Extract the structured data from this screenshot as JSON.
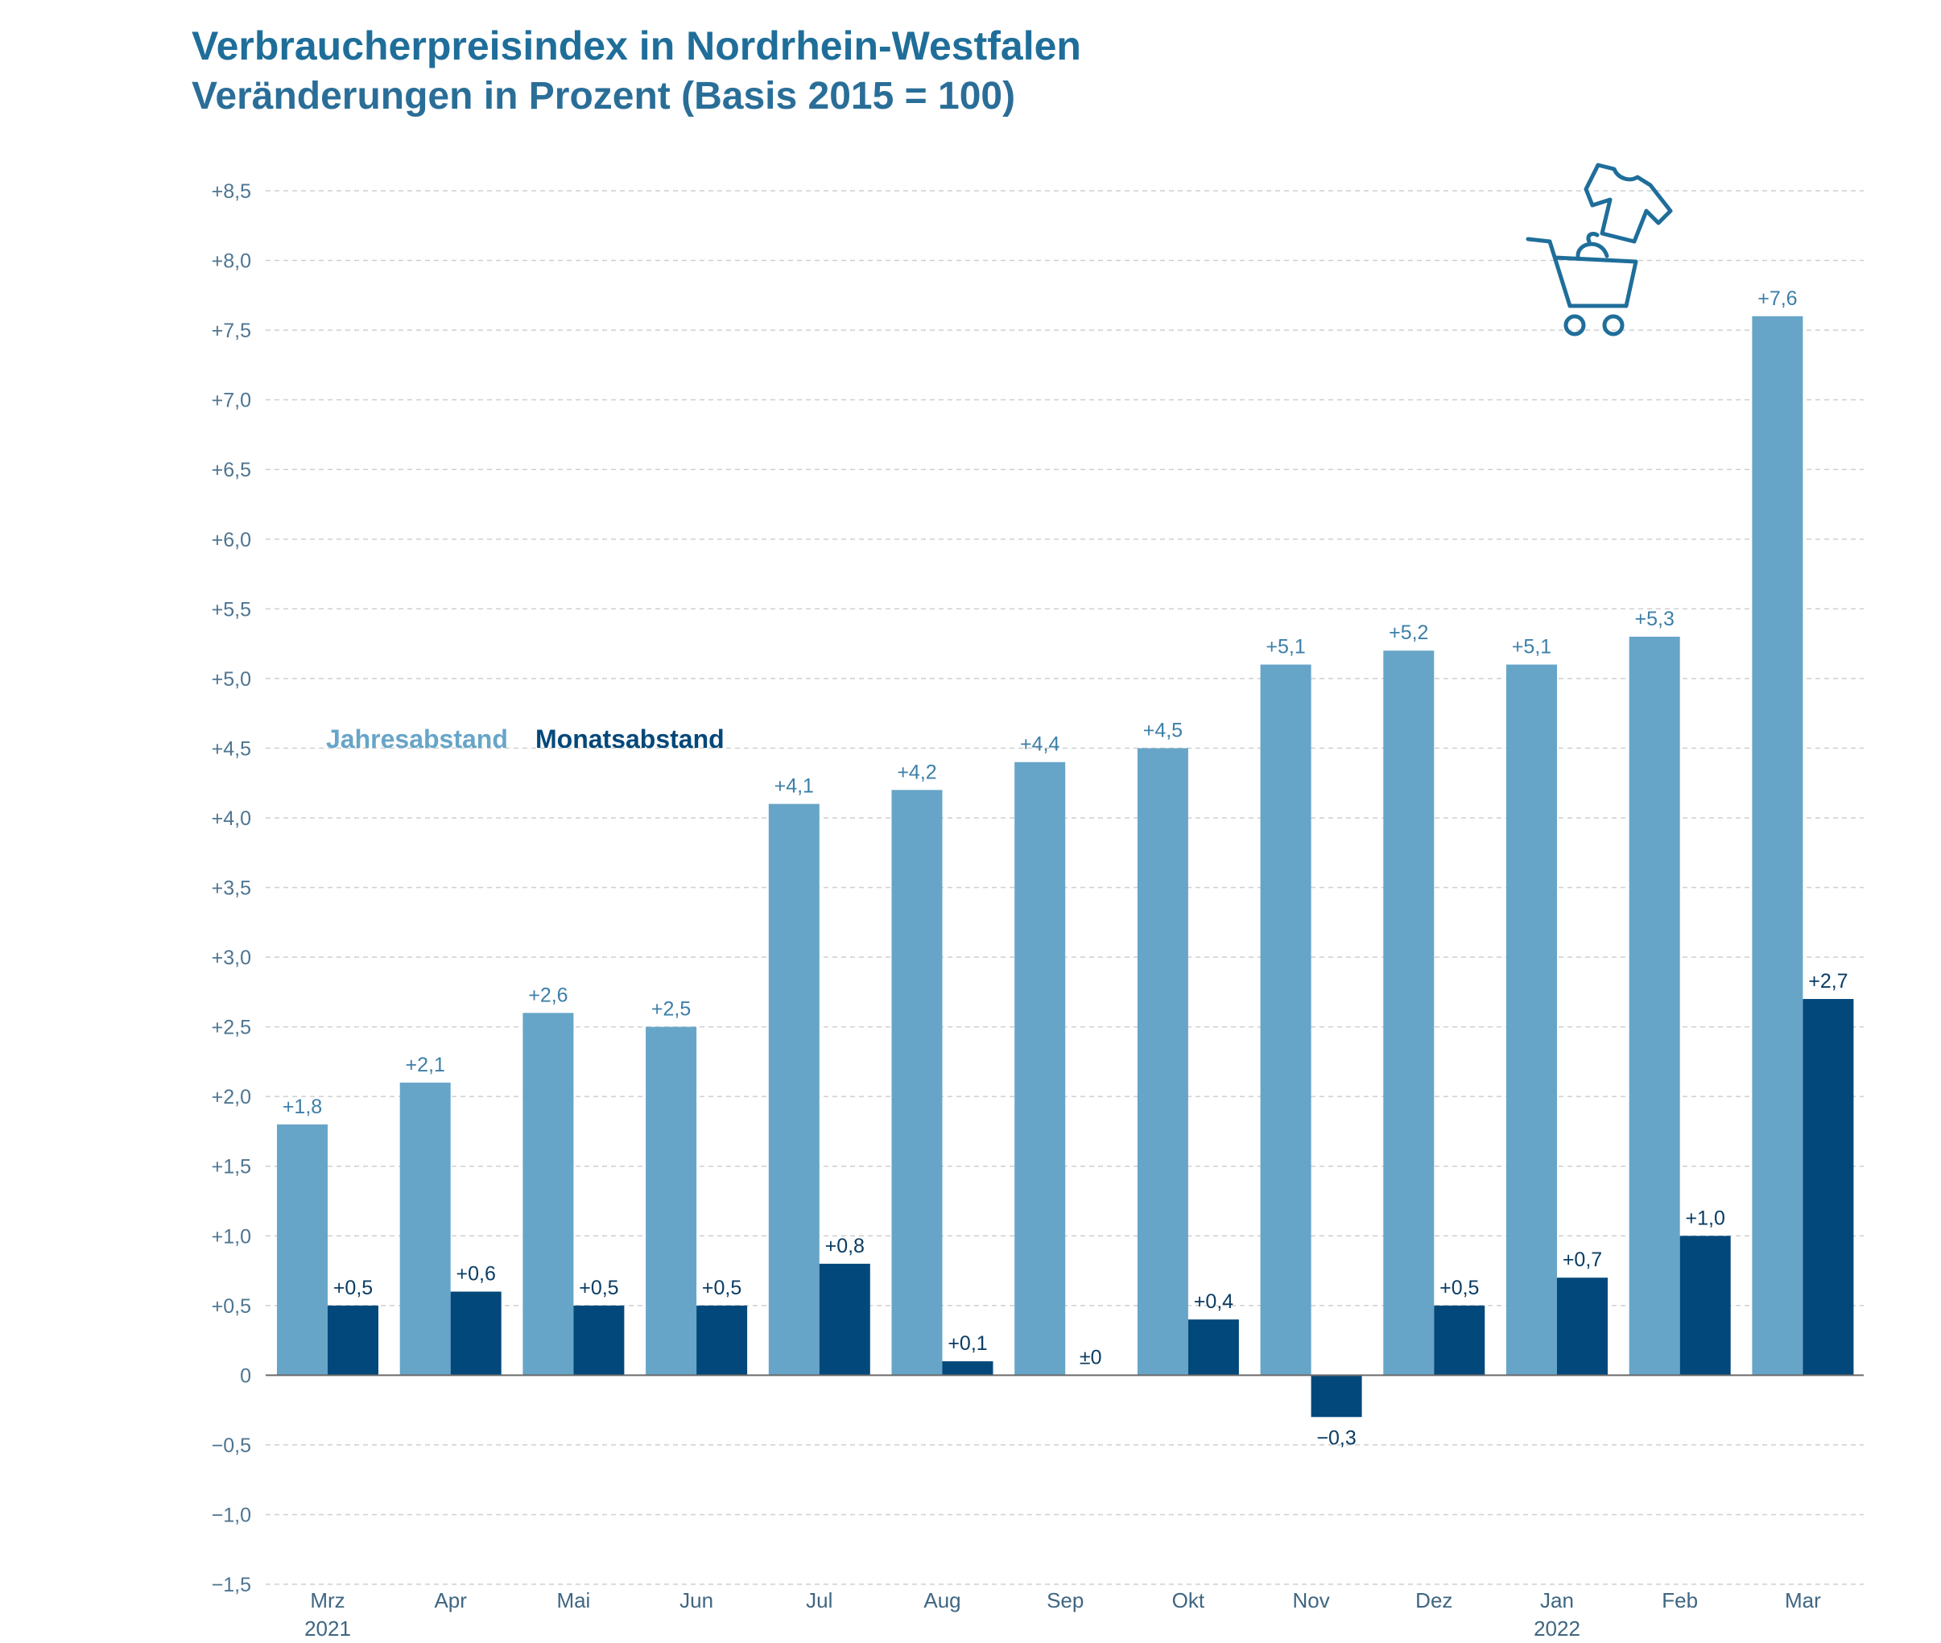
{
  "header": {
    "title": "Verbraucherpreisindex in Nordrhein-Westfalen",
    "subtitle": "Veränderungen in Prozent (Basis 2015 = 100)"
  },
  "colors": {
    "series_year": "#67a5c8",
    "series_month": "#03487a",
    "title": "#1f6e9a",
    "grid": "#cfcfcf",
    "axis": "#6b6b6b"
  },
  "icons": [
    "shopping-cart-icon",
    "t-shirt-icon"
  ],
  "chart_data": {
    "type": "bar",
    "title": "Verbraucherpreisindex in Nordrhein-Westfalen",
    "subtitle": "Veränderungen in Prozent (Basis 2015 = 100)",
    "xlabel": "",
    "ylabel": "",
    "ylim": [
      -1.5,
      8.5
    ],
    "grid": true,
    "legend_position": "left-middle",
    "categories": [
      "Mrz",
      "Apr",
      "Mai",
      "Jun",
      "Jul",
      "Aug",
      "Sep",
      "Okt",
      "Nov",
      "Dez",
      "Jan",
      "Feb",
      "Mar"
    ],
    "category_years": [
      "2021",
      "",
      "",
      "",
      "",
      "",
      "",
      "",
      "",
      "",
      "2022",
      "",
      ""
    ],
    "y_ticks": [
      8.5,
      8.0,
      7.5,
      7.0,
      6.5,
      6.0,
      5.5,
      5.0,
      4.5,
      4.0,
      3.5,
      3.0,
      2.5,
      2.0,
      1.5,
      1.0,
      0.5,
      0,
      -0.5,
      -1.0,
      -1.5
    ],
    "y_tick_labels": [
      "+8,5",
      "+8,0",
      "+7,5",
      "+7,0",
      "+6,5",
      "+6,0",
      "+5,5",
      "+5,0",
      "+4,5",
      "+4,0",
      "+3,5",
      "+3,0",
      "+2,5",
      "+2,0",
      "+1,5",
      "+1,0",
      "+0,5",
      "0",
      "−0,5",
      "−1,0",
      "−1,5"
    ],
    "series": [
      {
        "name": "Jahresabstand",
        "values": [
          1.8,
          2.1,
          2.6,
          2.5,
          4.1,
          4.2,
          4.4,
          4.5,
          5.1,
          5.2,
          5.1,
          5.3,
          7.6
        ],
        "labels": [
          "+1,8",
          "+2,1",
          "+2,6",
          "+2,5",
          "+4,1",
          "+4,2",
          "+4,4",
          "+4,5",
          "+5,1",
          "+5,2",
          "+5,1",
          "+5,3",
          "+7,6"
        ]
      },
      {
        "name": "Monatsabstand",
        "values": [
          0.5,
          0.6,
          0.5,
          0.5,
          0.8,
          0.1,
          0.0,
          0.4,
          -0.3,
          0.5,
          0.7,
          1.0,
          2.7
        ],
        "labels": [
          "+0,5",
          "+0,6",
          "+0,5",
          "+0,5",
          "+0,8",
          "+0,1",
          "±0",
          "+0,4",
          "−0,3",
          "+0,5",
          "+0,7",
          "+1,0",
          "+2,7"
        ]
      }
    ]
  }
}
